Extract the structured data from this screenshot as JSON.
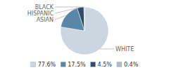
{
  "chart_data": {
    "type": "pie",
    "categories": [
      "WHITE",
      "ASIAN",
      "HISPANIC",
      "BLACK"
    ],
    "values": [
      77.6,
      17.5,
      4.5,
      0.4
    ],
    "colors": [
      "#ccd6e0",
      "#5b87a6",
      "#2e4d6b",
      "#b0bcc8"
    ],
    "value_labels": [
      "77.6%",
      "17.5%",
      "4.5%",
      "0.4%"
    ],
    "legend": "bottom"
  }
}
